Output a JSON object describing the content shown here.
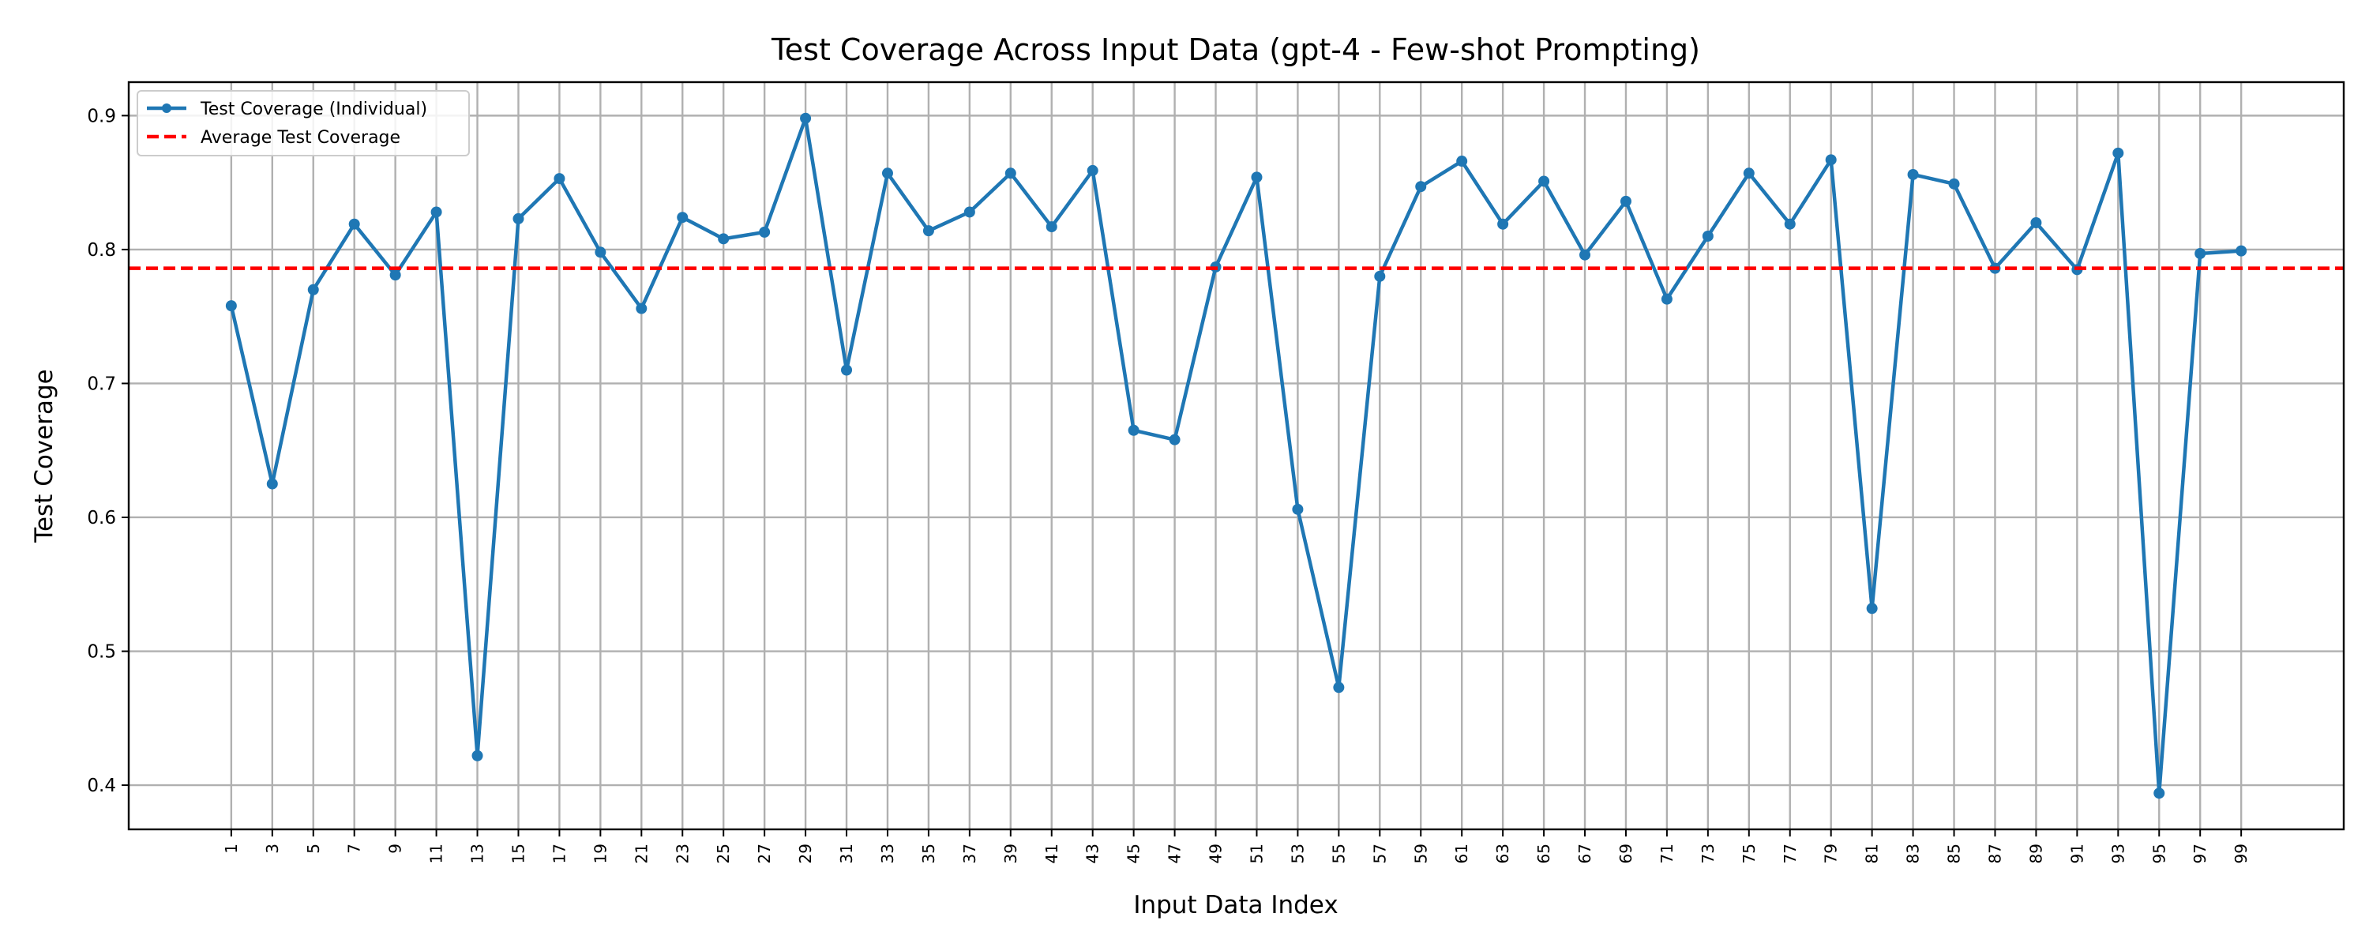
{
  "chart_data": {
    "type": "line",
    "title": "Test Coverage Across Input Data (gpt-4 - Few-shot Prompting)",
    "xlabel": "Input Data Index",
    "ylabel": "Test Coverage",
    "xlim": [
      -4,
      104
    ],
    "ylim": [
      0.367,
      0.925
    ],
    "grid": true,
    "legend_position": "top-left",
    "x": [
      1,
      3,
      5,
      7,
      9,
      11,
      13,
      15,
      17,
      19,
      21,
      23,
      25,
      27,
      29,
      31,
      33,
      35,
      37,
      39,
      41,
      43,
      45,
      47,
      49,
      51,
      53,
      55,
      57,
      59,
      61,
      63,
      65,
      67,
      69,
      71,
      73,
      75,
      77,
      79,
      81,
      83,
      85,
      87,
      89,
      91,
      93,
      95,
      97,
      99
    ],
    "xtick_labels": [
      "1",
      "3",
      "5",
      "7",
      "9",
      "11",
      "13",
      "15",
      "17",
      "19",
      "21",
      "23",
      "25",
      "27",
      "29",
      "31",
      "33",
      "35",
      "37",
      "39",
      "41",
      "43",
      "45",
      "47",
      "49",
      "51",
      "53",
      "55",
      "57",
      "59",
      "61",
      "63",
      "65",
      "67",
      "69",
      "71",
      "73",
      "75",
      "77",
      "79",
      "81",
      "83",
      "85",
      "87",
      "89",
      "91",
      "93",
      "95",
      "97",
      "99"
    ],
    "yticks": [
      0.4,
      0.5,
      0.6,
      0.7,
      0.8,
      0.9
    ],
    "ytick_labels": [
      "0.4",
      "0.5",
      "0.6",
      "0.7",
      "0.8",
      "0.9"
    ],
    "series": [
      {
        "name": "Test Coverage (Individual)",
        "color": "#1f77b4",
        "style": "solid-with-markers",
        "values": [
          0.758,
          0.625,
          0.77,
          0.819,
          0.781,
          0.828,
          0.422,
          0.823,
          0.853,
          0.798,
          0.756,
          0.824,
          0.808,
          0.813,
          0.898,
          0.71,
          0.857,
          0.814,
          0.828,
          0.857,
          0.817,
          0.859,
          0.665,
          0.658,
          0.787,
          0.854,
          0.606,
          0.473,
          0.78,
          0.847,
          0.866,
          0.819,
          0.851,
          0.796,
          0.836,
          0.763,
          0.81,
          0.857,
          0.819,
          0.867,
          0.532,
          0.856,
          0.849,
          0.786,
          0.82,
          0.785,
          0.872,
          0.394,
          0.797,
          0.799
        ]
      },
      {
        "name": "Average Test Coverage",
        "color": "#ff0000",
        "style": "dashed",
        "value": 0.786
      }
    ]
  }
}
